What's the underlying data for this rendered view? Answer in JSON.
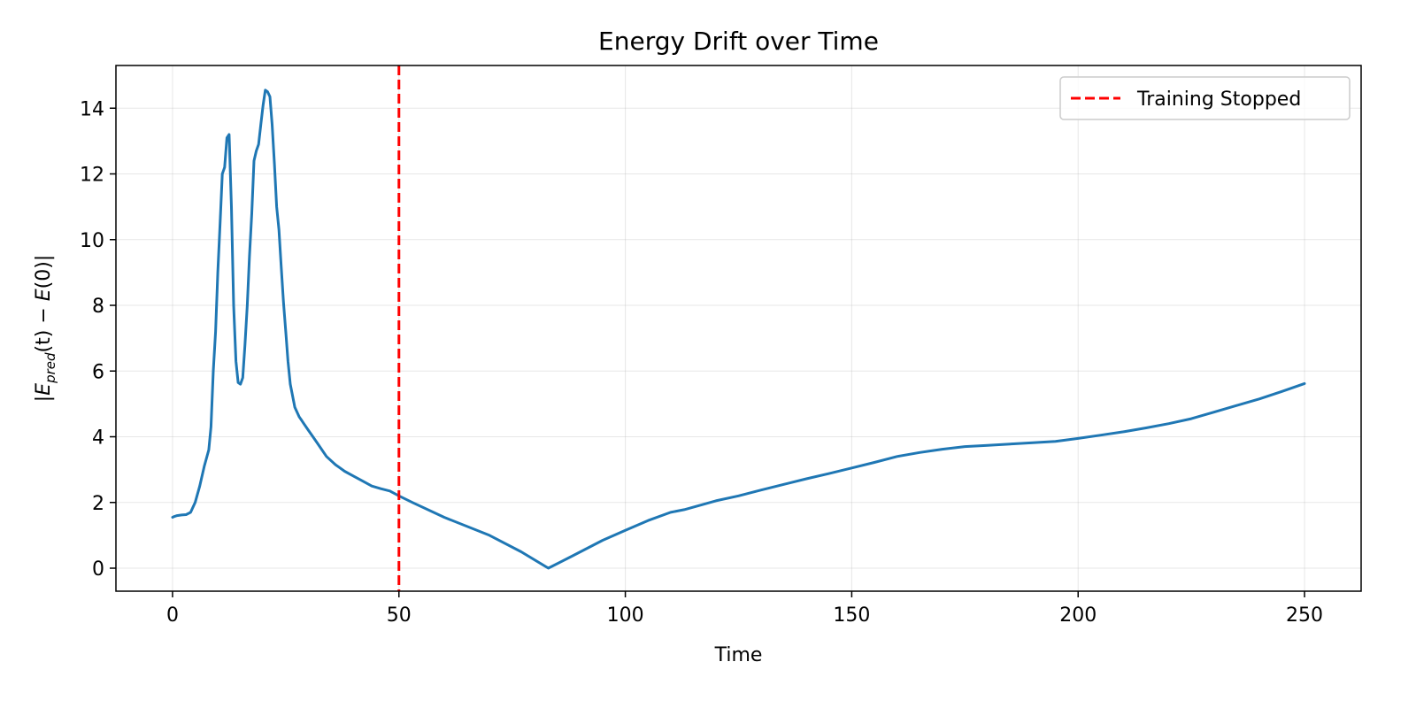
{
  "chart_data": {
    "type": "line",
    "title": "Energy Drift over Time",
    "xlabel": "Time",
    "ylabel_parts": {
      "open": "|",
      "e1": "E",
      "sub1": "pred",
      "mid": "(t) − ",
      "e2": "E",
      "close": "(0)|"
    },
    "xlim": [
      -12.5,
      262.5
    ],
    "ylim": [
      -0.7,
      15.3
    ],
    "xticks": [
      0,
      50,
      100,
      150,
      200,
      250
    ],
    "yticks": [
      0,
      2,
      4,
      6,
      8,
      10,
      12,
      14
    ],
    "xtick_labels": [
      "0",
      "50",
      "100",
      "150",
      "200",
      "250"
    ],
    "ytick_labels": [
      "0",
      "2",
      "4",
      "6",
      "8",
      "10",
      "12",
      "14"
    ],
    "grid": true,
    "legend_position": "top-right",
    "series": [
      {
        "color": "#1f77b4",
        "x": [
          0,
          0.5,
          1,
          2,
          3,
          4,
          5,
          6,
          7,
          8,
          8.5,
          9,
          9.5,
          10,
          10.5,
          11,
          11.5,
          12,
          12.5,
          13,
          13.5,
          14,
          14.5,
          15,
          15.5,
          16,
          16.5,
          17,
          17.5,
          18,
          18.5,
          19,
          19.5,
          20,
          20.5,
          21,
          21.5,
          22,
          22.5,
          23,
          23.5,
          24,
          24.5,
          25,
          25.5,
          26,
          27,
          28,
          28.5,
          29,
          30,
          31,
          32,
          34,
          36,
          38,
          40,
          42,
          44,
          46,
          48,
          50,
          53,
          60,
          70,
          77,
          83,
          88,
          95,
          100,
          105,
          110,
          113,
          120,
          125,
          130,
          135,
          140,
          145,
          150,
          155,
          160,
          165,
          170,
          175,
          180,
          185,
          190,
          195,
          200,
          205,
          210,
          215,
          220,
          225,
          230,
          235,
          240,
          245,
          250
        ],
        "y": [
          1.55,
          1.58,
          1.6,
          1.62,
          1.63,
          1.7,
          2.0,
          2.5,
          3.1,
          3.6,
          4.3,
          6.0,
          7.2,
          9.0,
          10.5,
          12.0,
          12.2,
          13.1,
          13.2,
          11.0,
          8.0,
          6.3,
          5.65,
          5.6,
          5.8,
          6.8,
          8.0,
          9.5,
          10.8,
          12.4,
          12.7,
          12.9,
          13.5,
          14.1,
          14.55,
          14.5,
          14.35,
          13.5,
          12.3,
          11.0,
          10.3,
          9.2,
          8.1,
          7.2,
          6.3,
          5.6,
          4.9,
          4.6,
          4.5,
          4.4,
          4.2,
          4.0,
          3.8,
          3.4,
          3.15,
          2.95,
          2.8,
          2.65,
          2.5,
          2.42,
          2.35,
          2.2,
          2.0,
          1.55,
          1.0,
          0.5,
          0.0,
          0.35,
          0.85,
          1.15,
          1.45,
          1.7,
          1.78,
          2.05,
          2.2,
          2.38,
          2.55,
          2.72,
          2.88,
          3.05,
          3.22,
          3.4,
          3.52,
          3.62,
          3.7,
          3.74,
          3.78,
          3.82,
          3.86,
          3.95,
          4.05,
          4.15,
          4.27,
          4.4,
          4.55,
          4.75,
          4.95,
          5.15,
          5.38,
          5.62
        ]
      }
    ],
    "markers": [
      {
        "x": 50,
        "color": "#ff0000",
        "style": "dashed",
        "label": "Training Stopped"
      }
    ]
  }
}
